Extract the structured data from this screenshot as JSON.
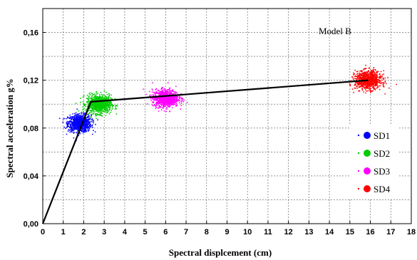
{
  "chart_data": {
    "type": "scatter",
    "title": "",
    "xlabel": "Spectral displcement (cm)",
    "ylabel": "Spectral acceleration g%",
    "xlim": [
      0,
      18
    ],
    "ylim": [
      0,
      0.18
    ],
    "x_ticks": [
      "0",
      "1",
      "2",
      "3",
      "4",
      "5",
      "6",
      "7",
      "8",
      "9",
      "10",
      "11",
      "12",
      "13",
      "14",
      "15",
      "16",
      "17",
      "18"
    ],
    "y_ticks": [
      {
        "value": 0.0,
        "label": "0,00"
      },
      {
        "value": 0.04,
        "label": "0,04"
      },
      {
        "value": 0.08,
        "label": "0,08"
      },
      {
        "value": 0.12,
        "label": "0,12"
      },
      {
        "value": 0.16,
        "label": "0,16"
      }
    ],
    "grid": true,
    "annotation": "Model B",
    "legend_position": "right",
    "curve": {
      "x": [
        0,
        2.35,
        15.9
      ],
      "y": [
        0,
        0.102,
        0.12
      ],
      "color": "#000000"
    },
    "series": [
      {
        "name": "SD1",
        "color": "#0000ff",
        "center": [
          1.8,
          0.084
        ],
        "spread": [
          0.28,
          0.0036
        ]
      },
      {
        "name": "SD2",
        "color": "#00cc00",
        "center": [
          2.75,
          0.1
        ],
        "spread": [
          0.3,
          0.0038
        ]
      },
      {
        "name": "SD3",
        "color": "#ff00ff",
        "center": [
          6.0,
          0.105
        ],
        "spread": [
          0.32,
          0.0036
        ]
      },
      {
        "name": "SD4",
        "color": "#ff0000",
        "center": [
          15.9,
          0.12
        ],
        "spread": [
          0.32,
          0.0038
        ]
      }
    ]
  }
}
